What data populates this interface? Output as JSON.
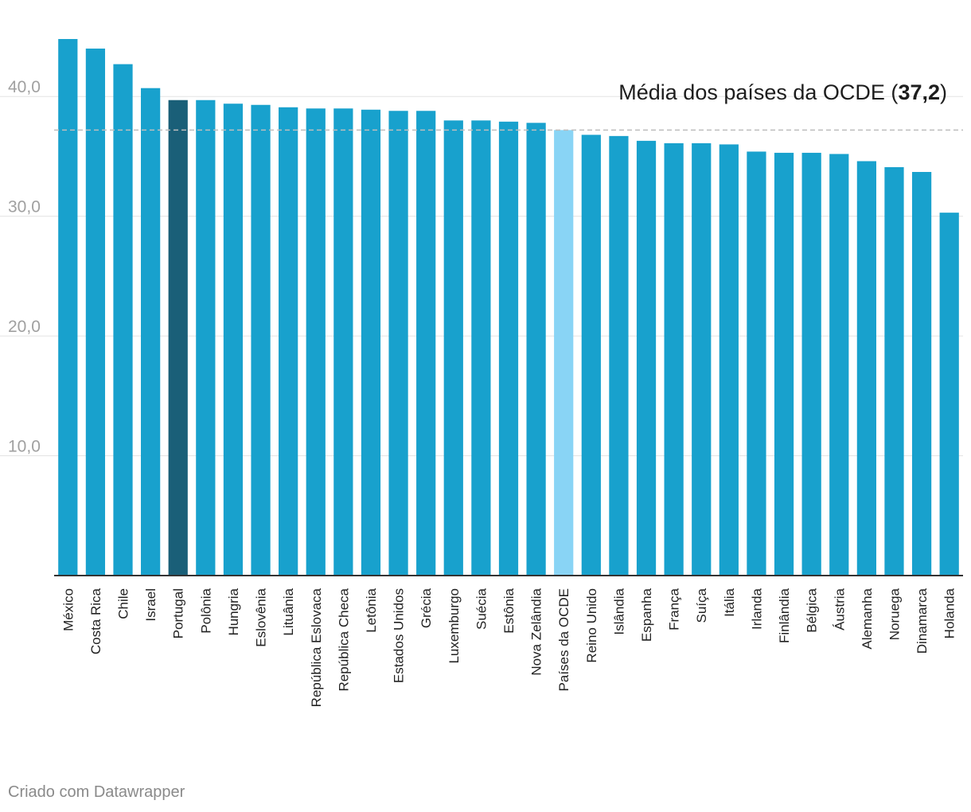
{
  "chart_data": {
    "type": "bar",
    "categories": [
      "México",
      "Costa Rica",
      "Chile",
      "Israel",
      "Portugal",
      "Polônia",
      "Hungria",
      "Eslovênia",
      "Lituânia",
      "República Eslovaca",
      "República Checa",
      "Letônia",
      "Estados Unidos",
      "Grécia",
      "Luxemburgo",
      "Suécia",
      "Estônia",
      "Nova Zelândia",
      "Países da OCDE",
      "Reino Unido",
      "Islândia",
      "Espanha",
      "França",
      "Suíça",
      "Itália",
      "Irlanda",
      "Finlândia",
      "Bélgica",
      "Áustria",
      "Alemanha",
      "Noruega",
      "Dinamarca",
      "Holanda"
    ],
    "values": [
      44.8,
      44.0,
      42.7,
      40.7,
      39.7,
      39.7,
      39.4,
      39.3,
      39.1,
      39.0,
      39.0,
      38.9,
      38.8,
      38.8,
      38.0,
      38.0,
      37.9,
      37.8,
      37.2,
      36.8,
      36.7,
      36.3,
      36.1,
      36.1,
      36.0,
      35.4,
      35.3,
      35.3,
      35.2,
      34.6,
      34.1,
      33.7,
      30.3
    ],
    "ylim": [
      0,
      45
    ],
    "yticks": [
      10,
      20,
      30,
      40
    ],
    "ytick_labels": [
      "10,0",
      "20,0",
      "30,0",
      "40,0"
    ],
    "grid": true,
    "reference_line": {
      "value": 37.2,
      "label_prefix": "Média dos países da OCDE (",
      "label_value": "37,2",
      "label_suffix": ")"
    },
    "highlights": {
      "Portugal": "#1a5f78",
      "Países da OCDE": "#89d4f5"
    },
    "colors": {
      "bar": "#18a1cd",
      "grid": "#e3e3e3",
      "axis": "#333333",
      "reference_line": "#bdbdbd",
      "tick_label": "#a0a0a0",
      "category_label": "#222222"
    },
    "xlabel": "",
    "ylabel": ""
  },
  "footer": {
    "credit": "Criado com Datawrapper"
  }
}
